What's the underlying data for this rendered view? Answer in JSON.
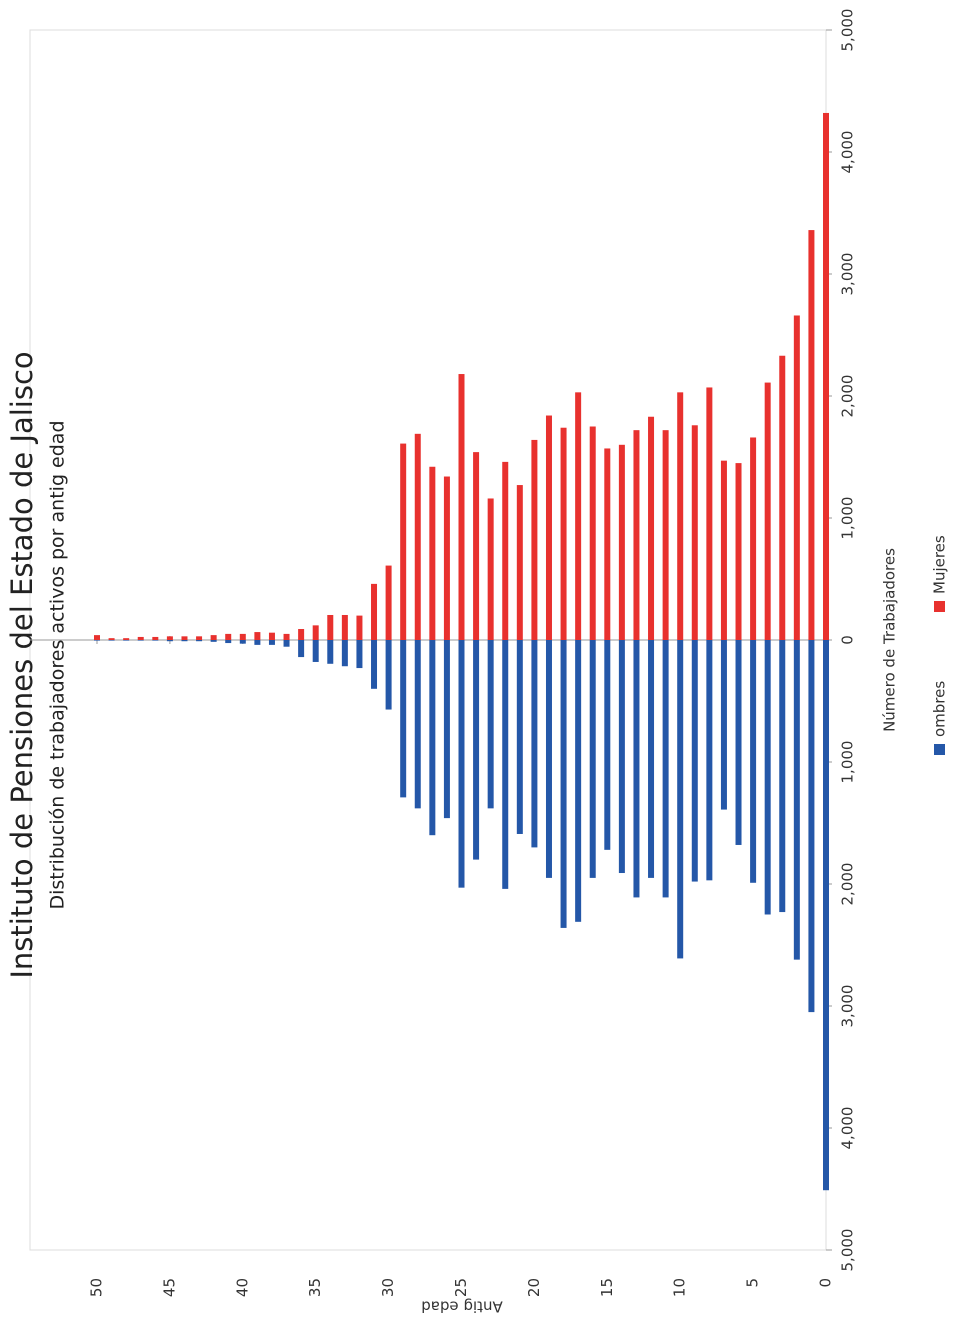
{
  "chart_data": {
    "type": "bar",
    "orientation": "horizontal",
    "title": "Instituto de Pensiones del Estado de Jalisco",
    "subtitle": "Distribución de trabajadores activos por antig edad",
    "xlabel": "Número de Trabajadores",
    "ylabel": "Antig edad",
    "y": [
      0,
      1,
      2,
      3,
      4,
      5,
      6,
      7,
      8,
      9,
      10,
      11,
      12,
      13,
      14,
      15,
      16,
      17,
      18,
      19,
      20,
      21,
      22,
      23,
      24,
      25,
      26,
      27,
      28,
      29,
      30,
      31,
      32,
      33,
      34,
      35,
      36,
      37,
      38,
      39,
      40,
      41,
      42,
      43,
      44,
      45,
      46,
      47,
      48,
      49,
      50
    ],
    "series": [
      {
        "name": "ombres",
        "color": "#2457a8",
        "values": [
          -4510,
          -3050,
          -2620,
          -2230,
          -2250,
          -1990,
          -1680,
          -1390,
          -1970,
          -1980,
          -2610,
          -2110,
          -1950,
          -2110,
          -1910,
          -1720,
          -1950,
          -2310,
          -2360,
          -1950,
          -1700,
          -1590,
          -2040,
          -1380,
          -1800,
          -2030,
          -1460,
          -1600,
          -1380,
          -1290,
          -570,
          -400,
          -230,
          -215,
          -195,
          -180,
          -140,
          -55,
          -40,
          -40,
          -30,
          -25,
          -15,
          -10,
          -10,
          -10,
          -5,
          -5,
          -5,
          -5,
          -5
        ]
      },
      {
        "name": "Mujeres",
        "color": "#e8312e",
        "values": [
          4320,
          3360,
          2660,
          2330,
          2110,
          1660,
          1450,
          1470,
          2070,
          1760,
          2030,
          1720,
          1830,
          1720,
          1600,
          1570,
          1750,
          2030,
          1740,
          1840,
          1640,
          1270,
          1460,
          1160,
          1540,
          2180,
          1340,
          1420,
          1690,
          1610,
          610,
          460,
          200,
          205,
          205,
          120,
          90,
          50,
          60,
          65,
          50,
          50,
          40,
          30,
          30,
          30,
          25,
          25,
          15,
          15,
          40
        ]
      }
    ],
    "xlim": [
      -5000,
      5000
    ],
    "xticks": [
      {
        "value": -5000,
        "label": "5,000"
      },
      {
        "value": -4000,
        "label": "4,000"
      },
      {
        "value": -3000,
        "label": "3,000"
      },
      {
        "value": -2000,
        "label": "2,000"
      },
      {
        "value": -1000,
        "label": "1,000"
      },
      0,
      {
        "value": 1000,
        "label": "1,000"
      },
      {
        "value": 2000,
        "label": "2,000"
      },
      {
        "value": 3000,
        "label": "3,000"
      },
      {
        "value": 4000,
        "label": "4,000"
      },
      {
        "value": 5000,
        "label": "5,000"
      }
    ],
    "ylim": [
      0,
      50
    ],
    "yticks": [
      0,
      5,
      10,
      15,
      20,
      25,
      30,
      35,
      40,
      45,
      50
    ],
    "grid": false,
    "legend": "bottom"
  }
}
